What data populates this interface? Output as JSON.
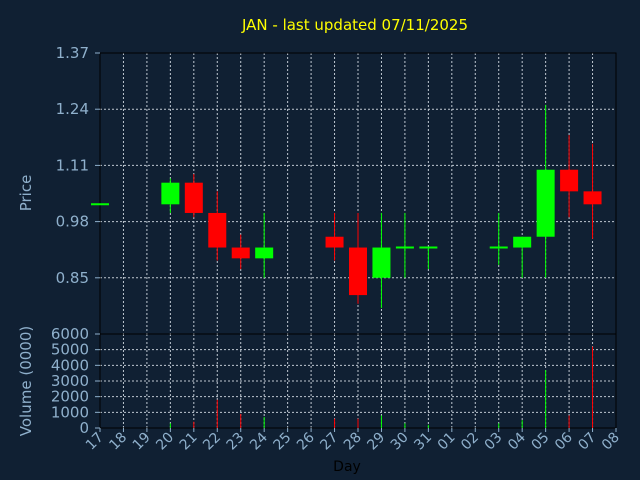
{
  "chart_data": {
    "type": "candlestick",
    "title": "JAN - last updated 07/11/2025",
    "price_panel": {
      "ylabel": "Price",
      "ylim": [
        0.72,
        1.37
      ],
      "yticks": [
        "0.85",
        "0.98",
        "1.11",
        "1.24",
        "1.37"
      ]
    },
    "volume_panel": {
      "ylabel": "Volume (0000)",
      "ylim": [
        0,
        6000
      ],
      "yticks": [
        "0",
        "1000",
        "2000",
        "3000",
        "4000",
        "5000",
        "6000"
      ]
    },
    "xlabel": "Day",
    "days": [
      "17",
      "18",
      "19",
      "20",
      "21",
      "22",
      "23",
      "24",
      "25",
      "26",
      "27",
      "28",
      "29",
      "30",
      "31",
      "01",
      "02",
      "03",
      "04",
      "05",
      "06",
      "07",
      "08"
    ],
    "up_color": "#00ff00",
    "down_color": "#ff0000",
    "candles": [
      {
        "day": "17",
        "open": 1.02,
        "close": 1.02,
        "high": 1.02,
        "low": 1.02,
        "volume": 0
      },
      {
        "day": "20",
        "open": 1.02,
        "close": 1.07,
        "high": 1.08,
        "low": 1.0,
        "volume": 300
      },
      {
        "day": "21",
        "open": 1.07,
        "close": 1.0,
        "high": 1.09,
        "low": 0.99,
        "volume": 400
      },
      {
        "day": "22",
        "open": 1.0,
        "close": 0.92,
        "high": 1.05,
        "low": 0.89,
        "volume": 1800
      },
      {
        "day": "23",
        "open": 0.92,
        "close": 0.895,
        "high": 0.95,
        "low": 0.87,
        "volume": 900
      },
      {
        "day": "24",
        "open": 0.895,
        "close": 0.92,
        "high": 1.0,
        "low": 0.85,
        "volume": 700
      },
      {
        "day": "27",
        "open": 0.945,
        "close": 0.92,
        "high": 1.0,
        "low": 0.89,
        "volume": 600
      },
      {
        "day": "28",
        "open": 0.92,
        "close": 0.81,
        "high": 1.0,
        "low": 0.79,
        "volume": 600
      },
      {
        "day": "29",
        "open": 0.85,
        "close": 0.92,
        "high": 1.0,
        "low": 0.78,
        "volume": 800
      },
      {
        "day": "30",
        "open": 0.92,
        "close": 0.92,
        "high": 1.0,
        "low": 0.85,
        "volume": 300
      },
      {
        "day": "31",
        "open": 0.92,
        "close": 0.92,
        "high": 0.92,
        "low": 0.87,
        "volume": 200
      },
      {
        "day": "03",
        "open": 0.92,
        "close": 0.92,
        "high": 1.0,
        "low": 0.88,
        "volume": 300
      },
      {
        "day": "04",
        "open": 0.92,
        "close": 0.945,
        "high": 0.945,
        "low": 0.85,
        "volume": 500
      },
      {
        "day": "05",
        "open": 0.945,
        "close": 1.1,
        "high": 1.25,
        "low": 0.85,
        "volume": 3700
      },
      {
        "day": "06",
        "open": 1.1,
        "close": 1.05,
        "high": 1.18,
        "low": 0.99,
        "volume": 800
      },
      {
        "day": "07",
        "open": 1.05,
        "close": 1.02,
        "high": 1.16,
        "low": 0.94,
        "volume": 5200
      }
    ]
  }
}
